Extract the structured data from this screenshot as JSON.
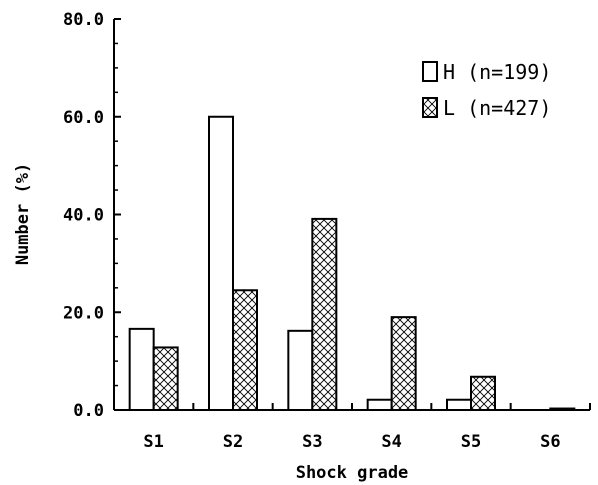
{
  "chart_data": {
    "type": "bar",
    "title": "",
    "xlabel": "Shock grade",
    "ylabel": "Number (%)",
    "ylim": [
      0,
      80
    ],
    "yticks": [
      "0.0",
      "20.0",
      "40.0",
      "60.0",
      "80.0"
    ],
    "categories": [
      "S1",
      "S2",
      "S3",
      "S4",
      "S5",
      "S6"
    ],
    "series": [
      {
        "name": "H (n=199)",
        "values": [
          16.6,
          60.0,
          16.2,
          2.1,
          2.1,
          0.0
        ],
        "fill": "#ffffff"
      },
      {
        "name": "L (n=427)",
        "values": [
          12.8,
          24.5,
          39.1,
          19.0,
          6.8,
          0.3
        ],
        "fill": "crosshatch"
      }
    ],
    "legend_position": "top-right",
    "grid": false
  }
}
